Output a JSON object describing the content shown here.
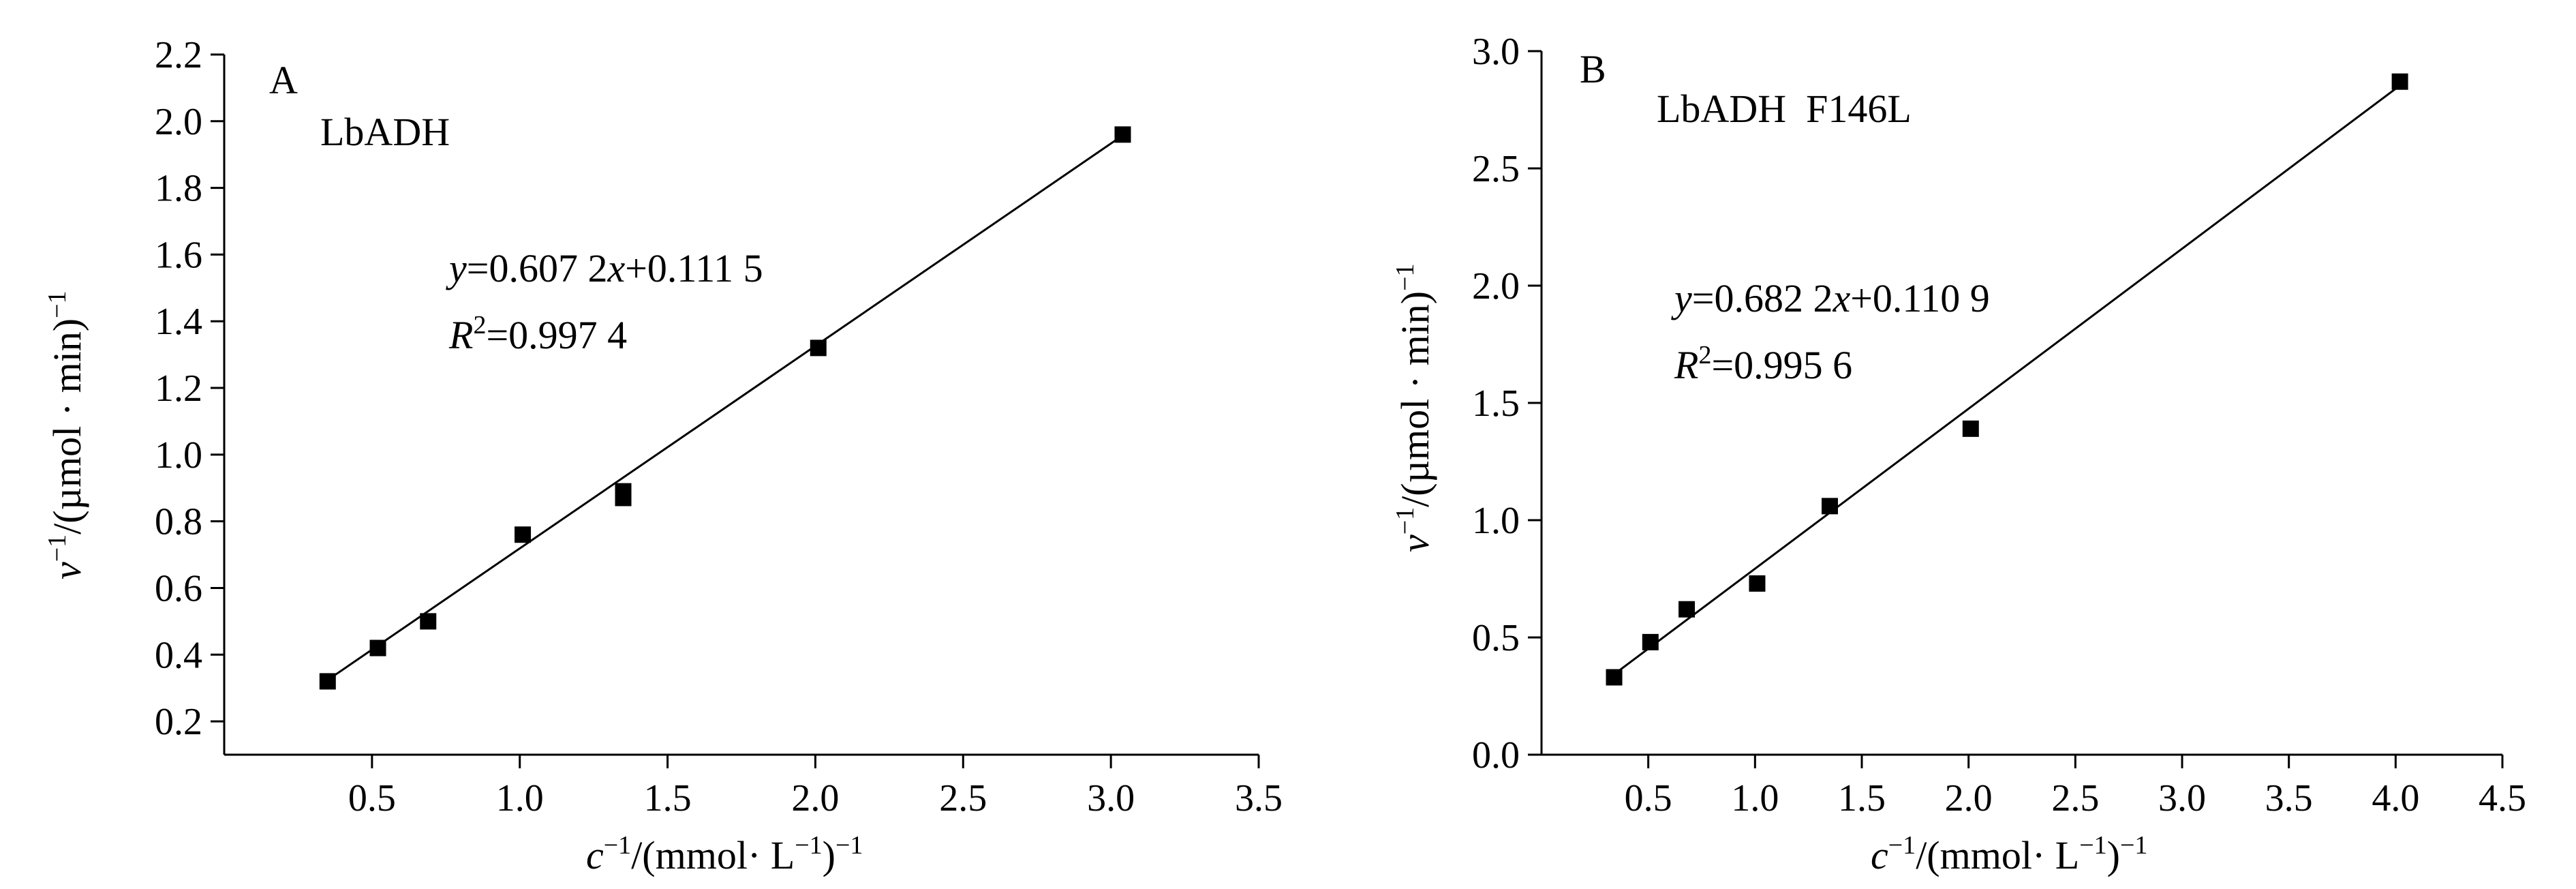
{
  "chart_data": [
    {
      "type": "scatter",
      "panel_label": "A",
      "enzyme_label": "LbADH",
      "equation_parts": [
        "y",
        "=0.607 2",
        "x",
        "+0.111 5"
      ],
      "r2_parts": [
        "R",
        "2",
        "=0.997 4"
      ],
      "xlabel_parts": [
        "c",
        "−1",
        "/(mmol· L",
        "−1",
        ")",
        "−1"
      ],
      "ylabel_parts": [
        "v",
        "−1",
        "/(µmol · min)",
        "−1"
      ],
      "xlim": [
        0.0,
        3.5
      ],
      "ylim": [
        0.1,
        2.2
      ],
      "xticks": [
        "0.5",
        "1.0",
        "1.5",
        "2.0",
        "2.5",
        "3.0",
        "3.5"
      ],
      "yticks": [
        "0.2",
        "0.4",
        "0.6",
        "0.8",
        "1.0",
        "1.2",
        "1.4",
        "1.6",
        "1.8",
        "2.0",
        "2.2"
      ],
      "series": [
        {
          "x": [
            0.35,
            0.52,
            0.69,
            1.01,
            1.35,
            1.35,
            2.01,
            3.04
          ],
          "y": [
            0.32,
            0.42,
            0.5,
            0.76,
            0.89,
            0.87,
            1.32,
            1.96
          ]
        }
      ],
      "fit": {
        "slope": 0.6072,
        "intercept": 0.1115,
        "x_range": [
          0.35,
          3.04
        ]
      },
      "marker_color": "#000000"
    },
    {
      "type": "scatter",
      "panel_label": "B",
      "enzyme_label": "LbADH  F146L",
      "equation_parts": [
        "y",
        "=0.682 2",
        "x",
        "+0.110 9"
      ],
      "r2_parts": [
        "R",
        "2",
        "=0.995 6"
      ],
      "xlabel_parts": [
        "c",
        "−1",
        "/(mmol· L",
        "−1",
        ")",
        "−1"
      ],
      "ylabel_parts": [
        "v",
        "−1",
        "/(µmol · min)",
        "−1"
      ],
      "xlim": [
        0.0,
        4.5
      ],
      "ylim": [
        0.0,
        3.0
      ],
      "xticks": [
        "0.5",
        "1.0",
        "1.5",
        "2.0",
        "2.5",
        "3.0",
        "3.5",
        "4.0",
        "4.5"
      ],
      "yticks": [
        "0.0",
        "0.5",
        "1.0",
        "1.5",
        "2.0",
        "2.5",
        "3.0"
      ],
      "series": [
        {
          "x": [
            0.34,
            0.51,
            0.68,
            1.01,
            1.35,
            2.01,
            4.02
          ],
          "y": [
            0.33,
            0.48,
            0.62,
            0.73,
            1.06,
            1.39,
            2.87
          ]
        }
      ],
      "fit": {
        "slope": 0.6822,
        "intercept": 0.1109,
        "x_range": [
          0.34,
          4.02
        ]
      },
      "marker_color": "#000000"
    }
  ]
}
